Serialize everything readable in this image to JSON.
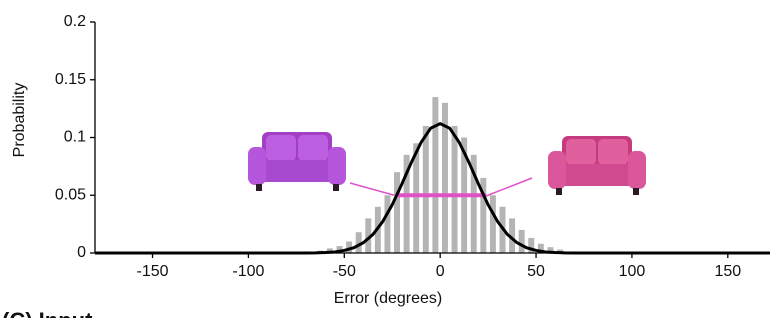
{
  "chart_data": {
    "type": "histogram",
    "x_label": "Error (degrees)",
    "y_label": "Probability",
    "panel_label": "(C) Input",
    "bins": [
      -65,
      -60,
      -55,
      -50,
      -45,
      -40,
      -35,
      -30,
      -25,
      -20,
      -15,
      -10,
      -5,
      0,
      5,
      10,
      15,
      20,
      25,
      30,
      35,
      40,
      45,
      50,
      55,
      60,
      65
    ],
    "values": [
      0.002,
      0.004,
      0.006,
      0.01,
      0.018,
      0.03,
      0.04,
      0.05,
      0.07,
      0.085,
      0.095,
      0.11,
      0.135,
      0.13,
      0.11,
      0.1,
      0.085,
      0.065,
      0.05,
      0.04,
      0.03,
      0.02,
      0.013,
      0.008,
      0.005,
      0.003
    ],
    "color": "#b4b4b4",
    "curve": {
      "x": [
        -180,
        -70,
        -65,
        -60,
        -55,
        -50,
        -45,
        -40,
        -35,
        -30,
        -25,
        -20,
        -15,
        -10,
        -5,
        0,
        5,
        10,
        15,
        20,
        25,
        30,
        35,
        40,
        45,
        50,
        55,
        60,
        65,
        70,
        172
      ],
      "values": [
        0,
        0,
        0.0001,
        0.0004,
        0.0009,
        0.0022,
        0.0046,
        0.009,
        0.0162,
        0.0271,
        0.0418,
        0.0596,
        0.0785,
        0.0956,
        0.108,
        0.112,
        0.108,
        0.0956,
        0.0785,
        0.0596,
        0.0418,
        0.0271,
        0.0162,
        0.009,
        0.0046,
        0.0022,
        0.0009,
        0.0004,
        0.0001,
        0,
        0
      ],
      "color": "#000000"
    },
    "reference_line": {
      "x": [
        -22,
        24
      ],
      "y": 0.05,
      "color": "#e050c8"
    },
    "xlim": [
      -180,
      172
    ],
    "ylim": [
      0,
      0.2
    ],
    "xticks": [
      -150,
      -100,
      -50,
      0,
      50,
      100,
      150
    ],
    "yticks": [
      0,
      0.05,
      0.1,
      0.15,
      0.2
    ]
  }
}
